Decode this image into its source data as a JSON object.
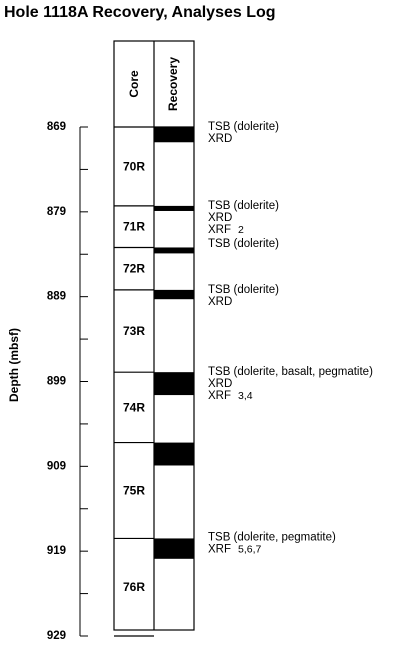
{
  "title": "Hole 1118A Recovery, Analyses Log",
  "headers": {
    "core": "Core",
    "recovery": "Recovery"
  },
  "y_axis_label": "Depth (mbsf)",
  "depth_ticks": [
    "869",
    "879",
    "889",
    "899",
    "909",
    "919",
    "929"
  ],
  "depth_range": [
    869,
    929
  ],
  "cores": [
    {
      "label": "70R",
      "top": 869.0,
      "bottom": 878.3
    },
    {
      "label": "71R",
      "top": 878.3,
      "bottom": 883.2
    },
    {
      "label": "72R",
      "top": 883.2,
      "bottom": 888.2
    },
    {
      "label": "73R",
      "top": 888.2,
      "bottom": 897.9
    },
    {
      "label": "74R",
      "top": 897.9,
      "bottom": 906.2
    },
    {
      "label": "75R",
      "top": 906.2,
      "bottom": 917.5
    },
    {
      "label": "76R",
      "top": 917.5,
      "bottom": 929.0
    }
  ],
  "recovery_intervals": [
    {
      "top": 869.0,
      "bottom": 870.8
    },
    {
      "top": 878.3,
      "bottom": 878.9
    },
    {
      "top": 883.2,
      "bottom": 883.9
    },
    {
      "top": 888.2,
      "bottom": 889.3
    },
    {
      "top": 897.9,
      "bottom": 900.6
    },
    {
      "top": 906.2,
      "bottom": 908.9
    },
    {
      "top": 917.5,
      "bottom": 919.9
    }
  ],
  "annotations": [
    {
      "depth": 869.0,
      "lines": [
        {
          "main": "TSB (dolerite)",
          "sup": ""
        },
        {
          "main": "XRD",
          "sup": ""
        }
      ]
    },
    {
      "depth": 878.3,
      "lines": [
        {
          "main": "TSB (dolerite)",
          "sup": ""
        },
        {
          "main": "XRD",
          "sup": ""
        },
        {
          "main": "XRF",
          "sup": "2"
        }
      ]
    },
    {
      "depth": 882.8,
      "lines": [
        {
          "main": "TSB (dolerite)",
          "sup": ""
        }
      ]
    },
    {
      "depth": 888.2,
      "lines": [
        {
          "main": "TSB (dolerite)",
          "sup": ""
        },
        {
          "main": "XRD",
          "sup": ""
        }
      ]
    },
    {
      "depth": 897.9,
      "lines": [
        {
          "main": "TSB (dolerite,  basalt, pegmatite)",
          "sup": ""
        },
        {
          "main": "XRD",
          "sup": ""
        },
        {
          "main": "XRF",
          "sup": "3,4"
        }
      ]
    },
    {
      "depth": 917.4,
      "lines": [
        {
          "main": "TSB (dolerite,  pegmatite)",
          "sup": ""
        },
        {
          "main": "XRF",
          "sup": "5,6,7"
        }
      ]
    }
  ]
}
